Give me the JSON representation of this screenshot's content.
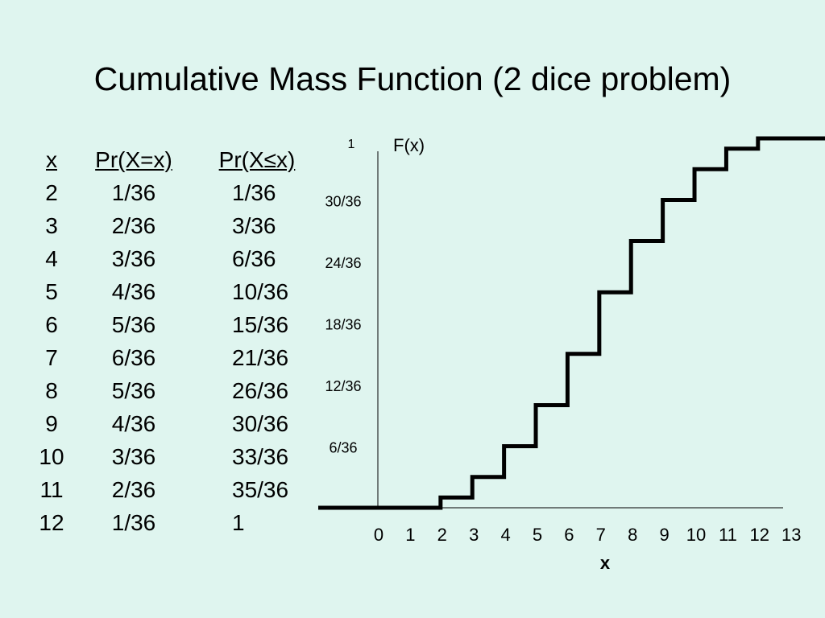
{
  "title": "Cumulative Mass Function (2 dice problem)",
  "table": {
    "headers": [
      "x",
      "Pr(X=x)",
      "Pr(X≤x)"
    ],
    "rows": [
      [
        "2",
        "1/36",
        "1/36"
      ],
      [
        "3",
        "2/36",
        "3/36"
      ],
      [
        "4",
        "3/36",
        "6/36"
      ],
      [
        "5",
        "4/36",
        "10/36"
      ],
      [
        "6",
        "5/36",
        "15/36"
      ],
      [
        "7",
        "6/36",
        "21/36"
      ],
      [
        "8",
        "5/36",
        "26/36"
      ],
      [
        "9",
        "4/36",
        "30/36"
      ],
      [
        "10",
        "3/36",
        "33/36"
      ],
      [
        "11",
        "2/36",
        "35/36"
      ],
      [
        "12",
        "1/36",
        "1"
      ]
    ]
  },
  "chart_data": {
    "type": "line",
    "step": true,
    "ylabel": "F(x)",
    "xlabel": "x",
    "xlim": [
      0,
      13
    ],
    "ylim": [
      0,
      1
    ],
    "x_ticks": [
      "0",
      "1",
      "2",
      "3",
      "4",
      "5",
      "6",
      "7",
      "8",
      "9",
      "10",
      "11",
      "12",
      "13"
    ],
    "y_ticks": [
      {
        "value": 0.1667,
        "label": "6/36"
      },
      {
        "value": 0.3333,
        "label": "12/36"
      },
      {
        "value": 0.5,
        "label": "18/36"
      },
      {
        "value": 0.6667,
        "label": "24/36"
      },
      {
        "value": 0.8333,
        "label": "30/36"
      },
      {
        "value": 1,
        "label": "1"
      }
    ],
    "series": [
      {
        "x": [
          2,
          3,
          4,
          5,
          6,
          7,
          8,
          9,
          10,
          11,
          12
        ],
        "y": [
          0.0278,
          0.0833,
          0.1667,
          0.2778,
          0.4167,
          0.5833,
          0.7222,
          0.8333,
          0.9167,
          0.9722,
          1
        ]
      }
    ],
    "line_color": "#000000"
  }
}
